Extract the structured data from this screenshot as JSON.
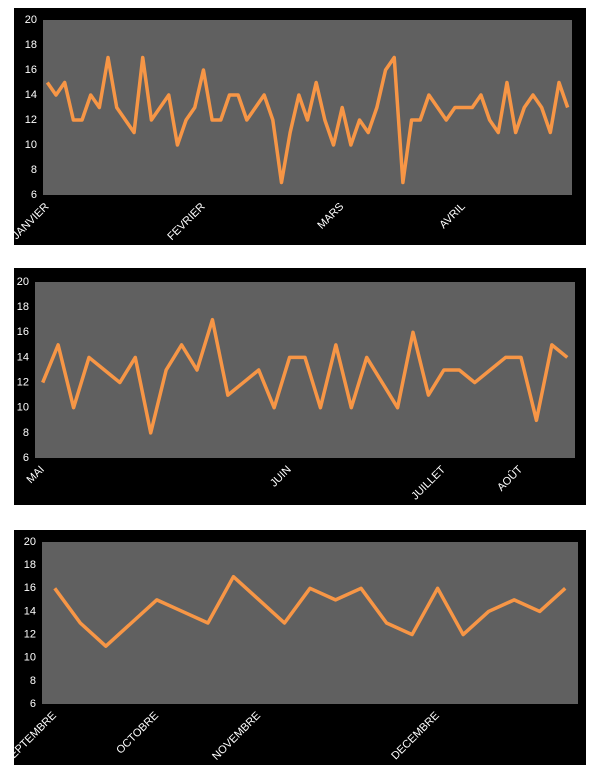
{
  "chart_data": [
    {
      "type": "line",
      "categories": [
        "JANVIER",
        null,
        null,
        null,
        null,
        null,
        null,
        null,
        null,
        null,
        null,
        null,
        null,
        null,
        null,
        null,
        null,
        null,
        "FEVRIER",
        null,
        null,
        null,
        null,
        null,
        null,
        null,
        null,
        null,
        null,
        null,
        null,
        null,
        null,
        null,
        "MARS",
        null,
        null,
        null,
        null,
        null,
        null,
        null,
        null,
        null,
        null,
        null,
        null,
        null,
        "AVRIL",
        null,
        null,
        null,
        null,
        null,
        null,
        null,
        null,
        null,
        null,
        null,
        null
      ],
      "values": [
        15,
        14,
        15,
        12,
        12,
        14,
        13,
        17,
        13,
        12,
        11,
        17,
        12,
        13,
        14,
        10,
        12,
        13,
        16,
        12,
        12,
        14,
        14,
        12,
        13,
        14,
        12,
        7,
        11,
        14,
        12,
        15,
        12,
        10,
        13,
        10,
        12,
        11,
        13,
        16,
        17,
        7,
        12,
        12,
        14,
        13,
        12,
        13,
        13,
        13,
        14,
        12,
        11,
        15,
        11,
        13,
        14,
        13,
        11,
        15,
        13
      ],
      "color": "#f79646",
      "ylim": [
        6,
        20
      ],
      "yticks": [
        6,
        8,
        10,
        12,
        14,
        16,
        18,
        20
      ],
      "grid": false
    },
    {
      "type": "line",
      "categories": [
        "MAI",
        null,
        null,
        null,
        null,
        null,
        null,
        null,
        null,
        null,
        null,
        null,
        null,
        null,
        null,
        null,
        "JUIN",
        null,
        null,
        null,
        null,
        null,
        null,
        null,
        null,
        null,
        "JUILLET",
        null,
        null,
        null,
        null,
        "AOÛT",
        null,
        null,
        null
      ],
      "values": [
        12,
        15,
        10,
        14,
        13,
        12,
        14,
        8,
        13,
        15,
        13,
        17,
        11,
        12,
        13,
        10,
        14,
        14,
        10,
        15,
        10,
        14,
        12,
        10,
        16,
        11,
        13,
        13,
        12,
        13,
        14,
        14,
        9,
        15,
        14
      ],
      "color": "#f79646",
      "ylim": [
        6,
        20
      ],
      "yticks": [
        6,
        8,
        10,
        12,
        14,
        16,
        18,
        20
      ],
      "grid": false
    },
    {
      "type": "line",
      "categories": [
        "SEPTEMBRE",
        null,
        null,
        null,
        "OCTOBRE",
        null,
        null,
        null,
        "NOVEMBRE",
        null,
        null,
        null,
        null,
        null,
        null,
        "DECEMBRE",
        null,
        null,
        null,
        null,
        null
      ],
      "values": [
        16,
        13,
        11,
        13,
        15,
        14,
        13,
        17,
        15,
        13,
        16,
        15,
        16,
        13,
        12,
        16,
        12,
        14,
        15,
        14,
        16
      ],
      "color": "#f79646",
      "ylim": [
        6,
        20
      ],
      "yticks": [
        6,
        8,
        10,
        12,
        14,
        16,
        18,
        20
      ],
      "grid": false
    }
  ]
}
